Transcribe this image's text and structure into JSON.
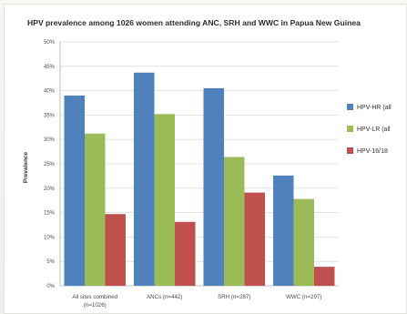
{
  "chart_data": {
    "type": "bar",
    "title": "HPV prevalence among 1026 women attending ANC, SRH and WWC in Papua New Guinea",
    "ylabel": "Prevalence",
    "xlabel": "",
    "ylim": [
      0,
      50
    ],
    "yticks": [
      0,
      5,
      10,
      15,
      20,
      25,
      30,
      35,
      40,
      45,
      50
    ],
    "ytick_labels": [
      "0%",
      "5%",
      "10%",
      "15%",
      "20%",
      "25%",
      "30%",
      "35%",
      "40%",
      "45%",
      "50%"
    ],
    "grid": true,
    "legend_position": "right",
    "categories": [
      [
        "All sites combined",
        "(n=1026)"
      ],
      [
        "ANCs (n=442)"
      ],
      [
        "SRH (n=287)"
      ],
      [
        "WWC (n=297)"
      ]
    ],
    "series": [
      {
        "name": "HPV-HR (all",
        "color": "#4f81bd",
        "values": [
          39.0,
          43.7,
          40.5,
          22.6
        ]
      },
      {
        "name": "HPV-LR (all",
        "color": "#9bbb59",
        "values": [
          31.2,
          35.2,
          26.4,
          17.8
        ]
      },
      {
        "name": "HPV-16/18",
        "color": "#c0504d",
        "values": [
          14.7,
          13.1,
          19.1,
          3.9
        ]
      }
    ]
  }
}
